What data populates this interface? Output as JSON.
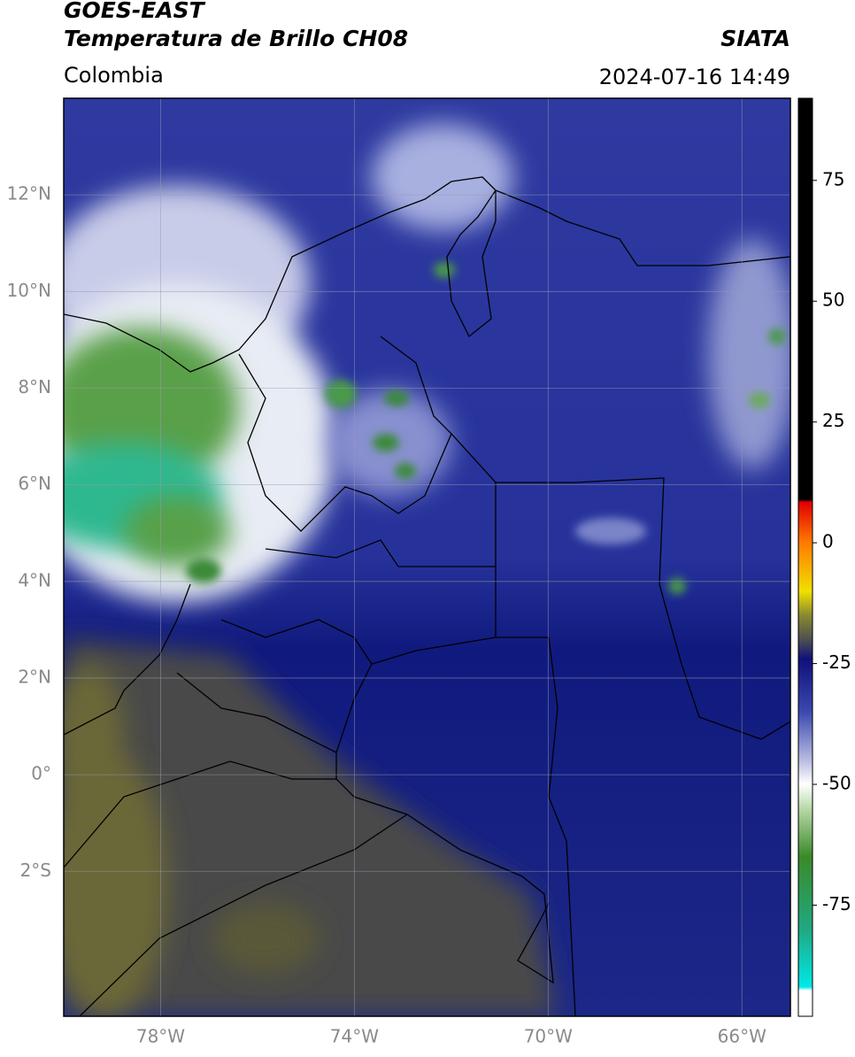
{
  "header": {
    "title": "GOES-EAST",
    "subtitle": "Temperatura de Brillo CH08",
    "source": "SIATA",
    "region": "Colombia",
    "datetime": "2024-07-16 14:49"
  },
  "map": {
    "lonlim": [
      -80,
      -65
    ],
    "latlim": [
      -5,
      14
    ],
    "lonticks": [
      {
        "value": -78,
        "label": "78°W"
      },
      {
        "value": -74,
        "label": "74°W"
      },
      {
        "value": -70,
        "label": "70°W"
      },
      {
        "value": -66,
        "label": "66°W"
      }
    ],
    "latticks": [
      {
        "value": 12,
        "label": "12°N"
      },
      {
        "value": 10,
        "label": "10°N"
      },
      {
        "value": 8,
        "label": "8°N"
      },
      {
        "value": 6,
        "label": "6°N"
      },
      {
        "value": 4,
        "label": "4°N"
      },
      {
        "value": 2,
        "label": "2°N"
      },
      {
        "value": 0,
        "label": "0°"
      },
      {
        "value": -2,
        "label": "2°S"
      }
    ],
    "grid": true
  },
  "colorbar": {
    "lim": [
      -98,
      92
    ],
    "ticks": [
      75,
      50,
      25,
      0,
      -25,
      -50,
      -75
    ]
  }
}
